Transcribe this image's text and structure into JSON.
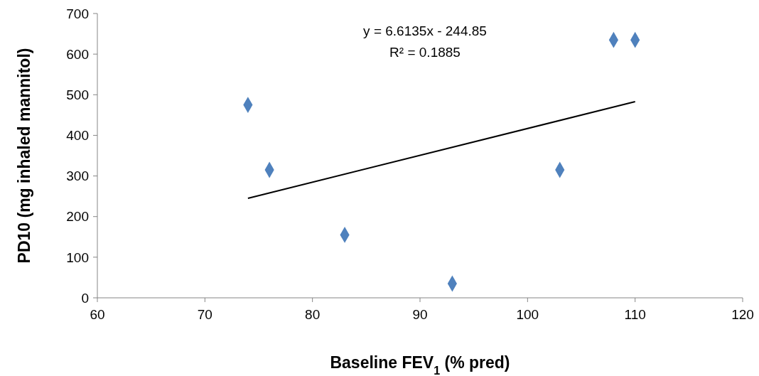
{
  "chart_data": {
    "type": "scatter",
    "xlabel": "Baseline FEV$_{1}$ (% pred)",
    "ylabel": "PD10 (mg inhaled mannitol)",
    "xlim": [
      60,
      120
    ],
    "xticks": [
      60,
      70,
      80,
      90,
      100,
      110,
      120
    ],
    "ylim": [
      0,
      700
    ],
    "yticks": [
      0,
      100,
      200,
      300,
      400,
      500,
      600,
      700
    ],
    "grid": false,
    "marker": "diamond",
    "annotations": [
      "y = 6.6135x - 244.85",
      "R² = 0.1885"
    ],
    "series": [
      {
        "color": "#4f81bd",
        "x": [
          74,
          76,
          83,
          93,
          103,
          108,
          110
        ],
        "values": [
          475,
          315,
          155,
          35,
          315,
          635,
          635
        ]
      },
      {
        "type": "line",
        "color": "#000000",
        "marker": "none",
        "line_style": "solid",
        "x": [
          74,
          110
        ],
        "values": [
          245,
          483
        ]
      }
    ]
  }
}
